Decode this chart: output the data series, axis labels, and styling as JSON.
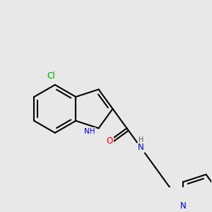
{
  "background_color": "#e8e8e8",
  "bond_color": "#000000",
  "bond_width": 1.5,
  "atom_colors": {
    "N": "#0000cc",
    "O": "#ff0000",
    "Cl": "#00aa00",
    "C": "#000000",
    "H": "#555555"
  }
}
